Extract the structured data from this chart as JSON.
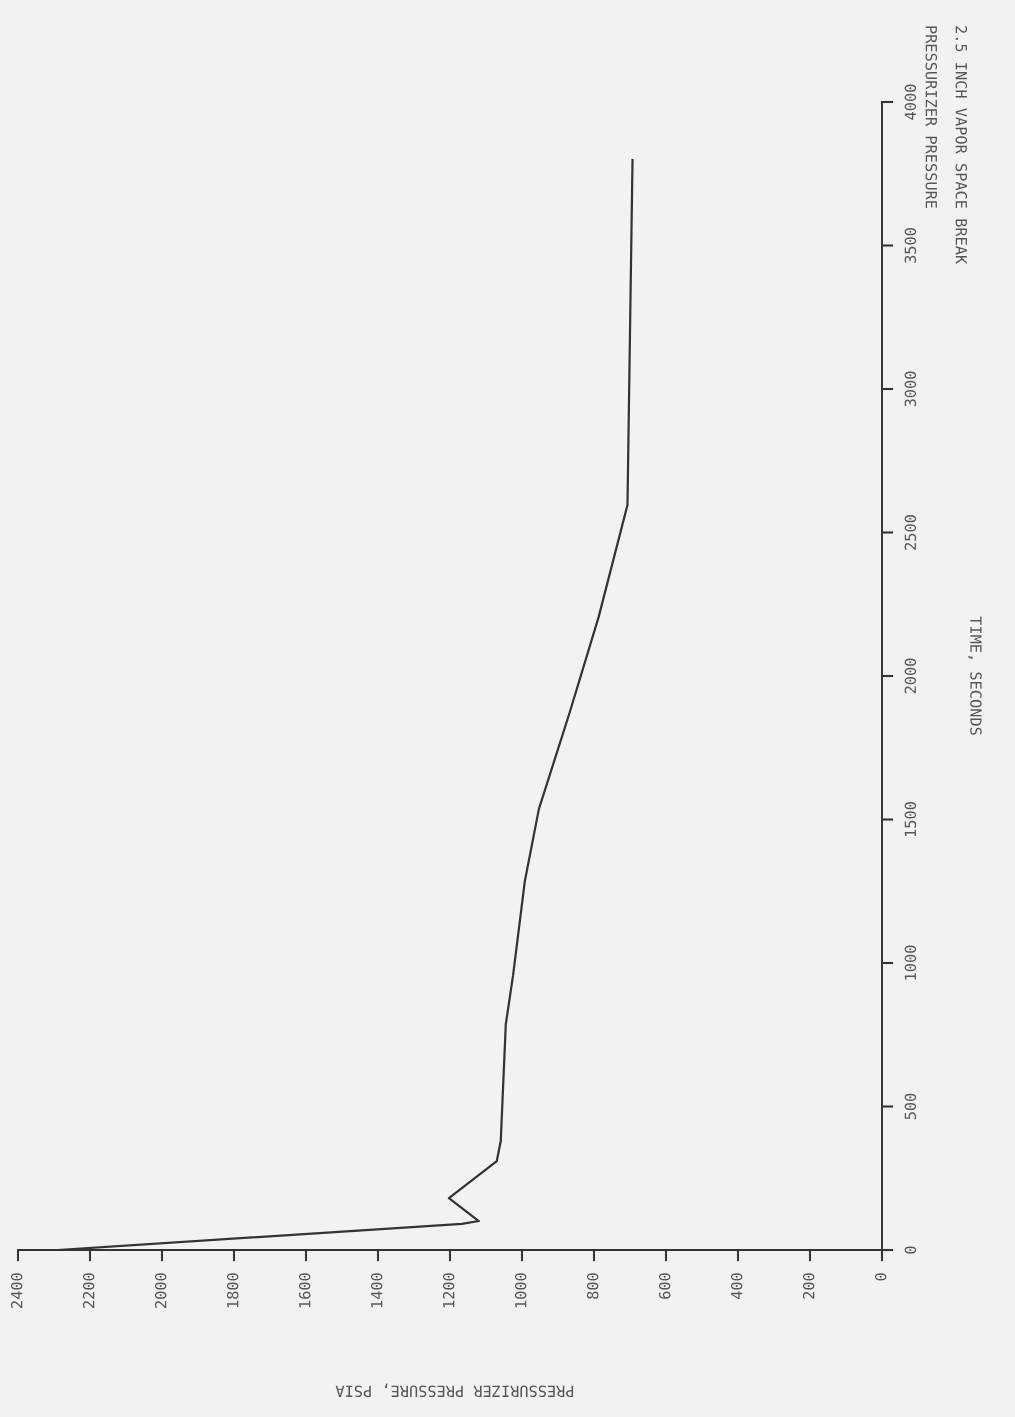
{
  "chart_data": {
    "type": "line",
    "title": "2.5 INCH VAPOR SPACE BREAK",
    "subtitle": "PRESSURIZER PRESSURE",
    "xlabel": "PRESSURIZER PRESSURE, PSIA",
    "ylabel": "TIME, SECONDS",
    "x": [
      2290,
      1167,
      1120,
      1203,
      1070,
      1059,
      1045,
      1025,
      992,
      953,
      868,
      787,
      707,
      693
    ],
    "series": [
      {
        "color": "#333333",
        "values": [
          0,
          91,
          101,
          181,
          310,
          380,
          787,
          955,
          1286,
          1537,
          1871,
          2206,
          2596,
          3798
        ]
      }
    ],
    "xlim": [
      2400,
      0
    ],
    "xticks": [
      0,
      200,
      400,
      600,
      800,
      1000,
      1200,
      1400,
      1600,
      1800,
      2000,
      2200,
      2400
    ],
    "ylim": [
      0,
      4000
    ],
    "yticks": [
      0,
      500,
      1000,
      1500,
      2000,
      2500,
      3000,
      3500,
      4000
    ],
    "grid": false,
    "legend": false
  }
}
